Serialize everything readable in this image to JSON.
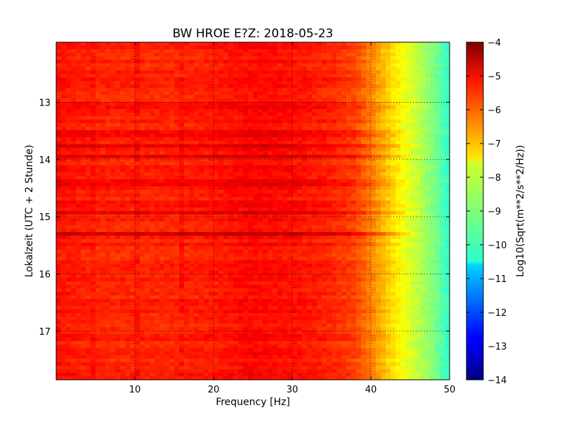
{
  "chart_data": {
    "type": "heatmap",
    "title": "BW HROE E?Z: 2018-05-23",
    "xlabel": "Frequency [Hz]",
    "ylabel": "Lokalzeit (UTC + 2 Stunde)",
    "xlim": [
      0,
      50
    ],
    "ylim": [
      17.85,
      11.95
    ],
    "y_inverted": true,
    "x_ticks": [
      10,
      20,
      30,
      40,
      50
    ],
    "y_ticks": [
      13,
      14,
      15,
      16,
      17
    ],
    "grid": true,
    "colormap": "jet",
    "colorbar": {
      "label": "Log10(Sqrt(m**2/s**2/Hz))",
      "range": [
        -14,
        -4
      ],
      "ticks": [
        -4,
        -5,
        -6,
        -7,
        -8,
        -9,
        -10,
        -11,
        -12,
        -13,
        -14
      ]
    },
    "frequency_profile": {
      "frequency_hz": [
        0,
        5,
        10,
        15,
        20,
        25,
        30,
        35,
        38,
        40,
        42,
        44,
        46,
        48,
        50
      ],
      "log10_amplitude": [
        -5.4,
        -5.6,
        -5.6,
        -5.6,
        -5.5,
        -5.3,
        -5.4,
        -5.6,
        -5.9,
        -6.5,
        -7.2,
        -7.8,
        -8.4,
        -9.0,
        -9.8
      ]
    },
    "features": [
      {
        "kind": "time_band",
        "time_h": 13.05,
        "offset_log10": 0.3
      },
      {
        "kind": "time_band",
        "time_h": 13.55,
        "offset_log10": 0.35
      },
      {
        "kind": "time_band",
        "time_h": 13.75,
        "offset_log10": 0.45
      },
      {
        "kind": "time_band",
        "time_h": 13.95,
        "offset_log10": 0.4
      },
      {
        "kind": "time_band",
        "time_h": 14.4,
        "offset_log10": 0.45
      },
      {
        "kind": "time_band",
        "time_h": 14.78,
        "offset_log10": 0.35
      },
      {
        "kind": "time_band",
        "time_h": 14.95,
        "offset_log10": 0.45
      },
      {
        "kind": "time_band",
        "time_h": 15.28,
        "offset_log10": 0.8
      },
      {
        "kind": "time_band",
        "time_h": 15.5,
        "offset_log10": 0.25
      },
      {
        "kind": "freq_line",
        "freq_hz": 4.8,
        "offset_log10": 0.25
      },
      {
        "kind": "freq_line",
        "freq_hz": 10.5,
        "offset_log10": 0.3
      },
      {
        "kind": "freq_line",
        "freq_hz": 16,
        "offset_log10": 0.3
      }
    ]
  }
}
